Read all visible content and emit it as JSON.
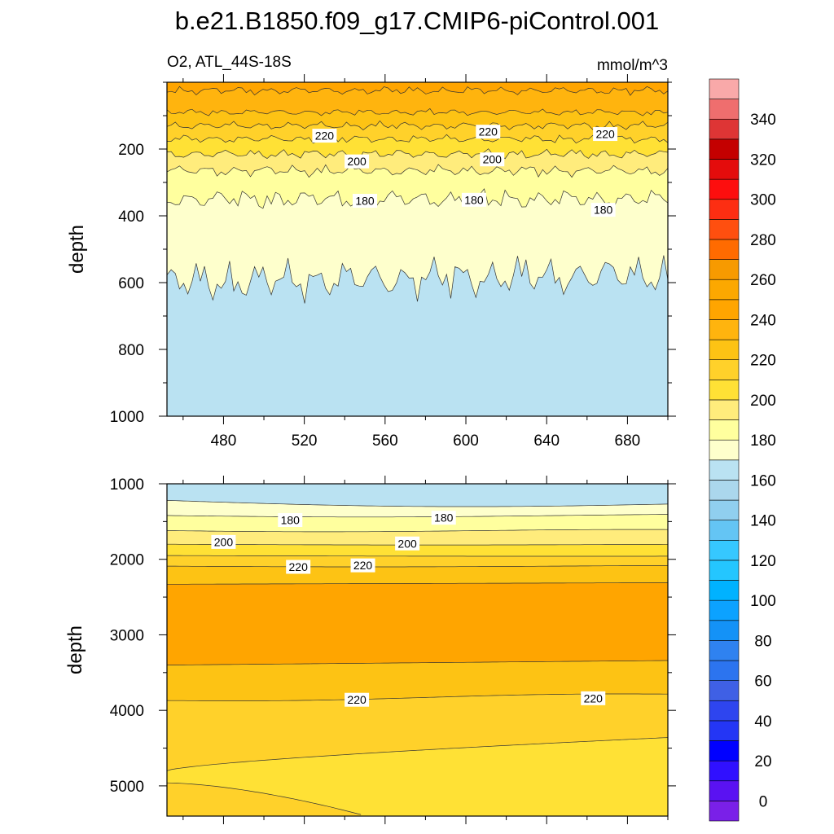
{
  "chart_data": {
    "type": "contour",
    "title": "b.e21.B1850.f09_g17.CMIP6-piControl.001",
    "variable_label": "O2, ATL_44S-18S",
    "units_label": "mmol/m^3",
    "xlim": [
      452,
      700
    ],
    "x_ticks": [
      480,
      520,
      560,
      600,
      640,
      680
    ],
    "x_tick_labels": [
      "480",
      "520",
      "560",
      "600",
      "640",
      "680"
    ],
    "colors": {
      "band_260_270": "#f79a00",
      "band_250_260": "#fca800",
      "band_240_250": "#ffa500",
      "band_230_240": "#ffb40e",
      "band_220_230": "#fdc314",
      "band_210_220": "#ffd12a",
      "band_200_210": "#ffe135",
      "band_190_200": "#ffec7c",
      "band_180_190": "#ffff9e",
      "band_170_180": "#feffcc",
      "band_160_170": "#bae2f2"
    },
    "panels": [
      {
        "ylabel": "depth",
        "ylim": [
          0,
          1000
        ],
        "y_ticks": [
          200,
          400,
          600,
          800,
          1000
        ],
        "y_tick_labels": [
          "200",
          "400",
          "600",
          "800",
          "1000"
        ],
        "contour_labels": [
          {
            "text": "220",
            "x": 530,
            "y": 160
          },
          {
            "text": "220",
            "x": 611,
            "y": 148
          },
          {
            "text": "220",
            "x": 669,
            "y": 155
          },
          {
            "text": "200",
            "x": 546,
            "y": 237
          },
          {
            "text": "200",
            "x": 613,
            "y": 231
          },
          {
            "text": "180",
            "x": 550,
            "y": 355
          },
          {
            "text": "180",
            "x": 604,
            "y": 352
          },
          {
            "text": "180",
            "x": 668,
            "y": 382
          }
        ]
      },
      {
        "ylabel": "depth",
        "ylim": [
          1000,
          5400
        ],
        "y_ticks": [
          1000,
          2000,
          3000,
          4000,
          5000
        ],
        "y_tick_labels": [
          "1000",
          "2000",
          "3000",
          "4000",
          "5000"
        ],
        "contour_labels": [
          {
            "text": "180",
            "x": 513,
            "y": 1480
          },
          {
            "text": "180",
            "x": 589,
            "y": 1450
          },
          {
            "text": "200",
            "x": 480,
            "y": 1770
          },
          {
            "text": "200",
            "x": 571,
            "y": 1790
          },
          {
            "text": "220",
            "x": 517,
            "y": 2100
          },
          {
            "text": "220",
            "x": 549,
            "y": 2080
          },
          {
            "text": "220",
            "x": 546,
            "y": 3860
          },
          {
            "text": "220",
            "x": 663,
            "y": 3840
          }
        ]
      }
    ],
    "colorbar": {
      "levels": [
        0,
        10,
        20,
        30,
        40,
        50,
        60,
        70,
        80,
        90,
        100,
        110,
        120,
        130,
        140,
        150,
        160,
        170,
        180,
        190,
        200,
        210,
        220,
        230,
        240,
        250,
        260,
        270,
        280,
        290,
        300,
        310,
        320,
        330,
        340,
        350
      ],
      "colors": [
        "#7a20e8",
        "#5a12f2",
        "#3010ff",
        "#0000ff",
        "#2436f5",
        "#2e45ef",
        "#3f60e5",
        "#2c74ef",
        "#2f82f0",
        "#1492f7",
        "#0ca2ff",
        "#00b2ff",
        "#24c6ff",
        "#36c8ff",
        "#64c5f4",
        "#90cfef",
        "#abd7ed",
        "#bae2f2",
        "#feffcc",
        "#ffff9e",
        "#ffec7c",
        "#ffe135",
        "#ffd12a",
        "#fdc314",
        "#ffb40e",
        "#ffa500",
        "#fca800",
        "#f79a00",
        "#ff6b00",
        "#ff4f0f",
        "#fd2e12",
        "#fd0e0e",
        "#e40c0c",
        "#c40000",
        "#de3535",
        "#ef6e6e",
        "#f9a9a9"
      ],
      "tick_values": [
        0,
        20,
        40,
        60,
        80,
        100,
        120,
        140,
        160,
        180,
        200,
        220,
        240,
        260,
        280,
        300,
        320,
        340
      ],
      "tick_labels": [
        "0",
        "20",
        "40",
        "60",
        "80",
        "100",
        "120",
        "140",
        "160",
        "180",
        "200",
        "220",
        "240",
        "260",
        "280",
        "300",
        "320",
        "340"
      ]
    }
  }
}
